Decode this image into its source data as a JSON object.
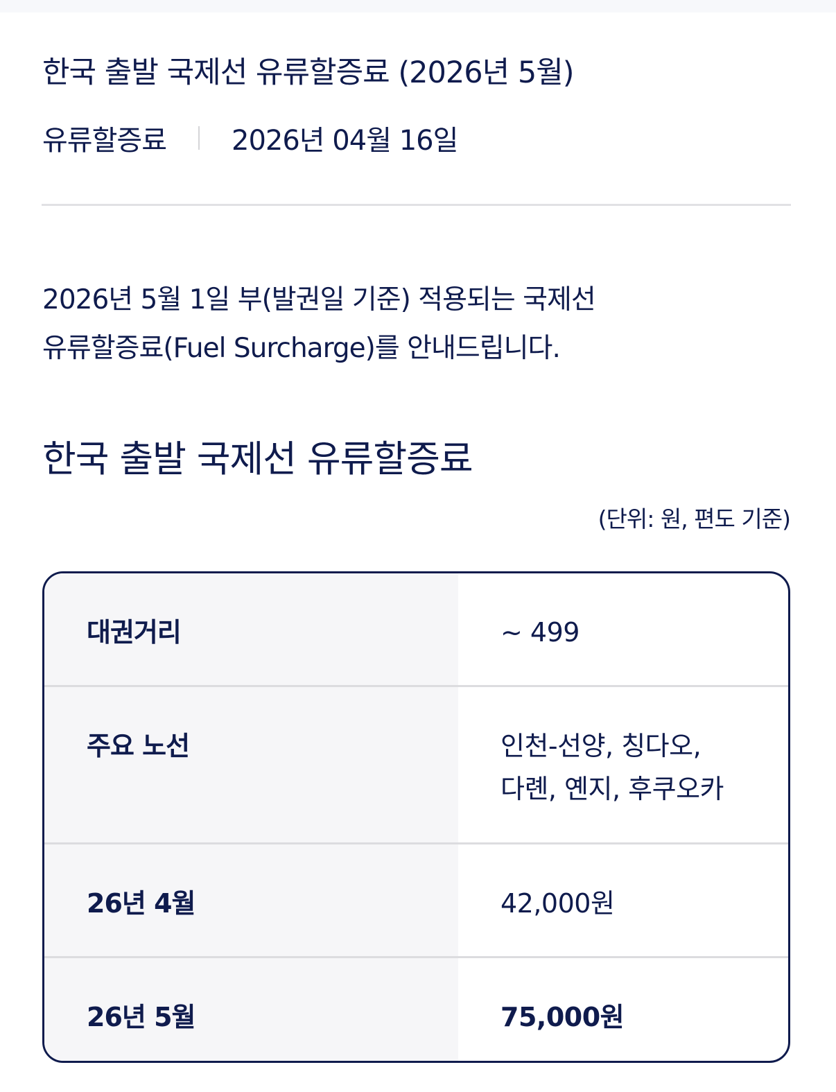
{
  "header": {
    "title": "한국 출발 국제선 유류할증료 (2026년 5월)",
    "category": "유류할증료",
    "date": "2026년 04월 16일"
  },
  "intro": {
    "line1": "2026년 5월 1일 부(발권일 기준) 적용되는 국제선",
    "line2": "유류할증료(Fuel Surcharge)를 안내드립니다."
  },
  "section": {
    "title": "한국 출발 국제선 유류할증료",
    "unit": "(단위: 원, 편도 기준)"
  },
  "table": {
    "rows": [
      {
        "label": "대권거리",
        "value": "~ 499"
      },
      {
        "label": "주요 노선",
        "value": "인천-선양, 칭다오,",
        "value2": "다롄, 옌지, 후쿠오카"
      },
      {
        "label": "26년 4월",
        "value": "42,000원"
      },
      {
        "label": "26년 5월",
        "value": "75,000원"
      }
    ]
  },
  "colors": {
    "text": "#0f1b4d",
    "header_cell_bg": "#f6f6f8",
    "border": "#0f1b4d"
  }
}
